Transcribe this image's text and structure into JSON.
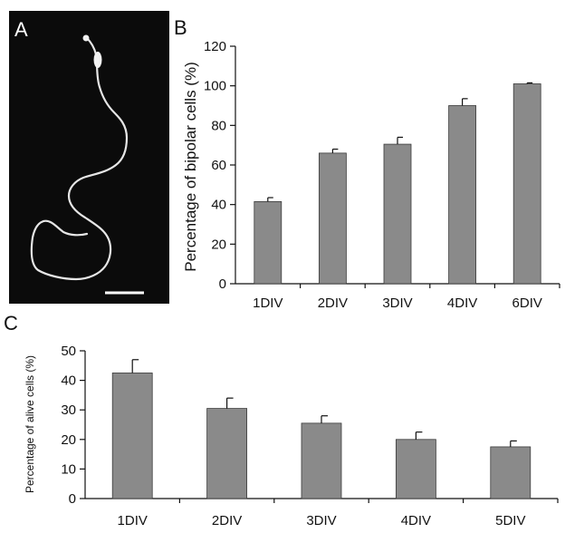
{
  "panels": {
    "a": {
      "letter": "A"
    },
    "b": {
      "letter": "B"
    },
    "c": {
      "letter": "C"
    }
  },
  "colors": {
    "bar": "#8a8a8a",
    "micrograph_background": "#0b0b0b",
    "neuron": "#e6e6e6"
  },
  "chart_data": [
    {
      "panel": "B",
      "type": "bar",
      "categories": [
        "1DIV",
        "2DIV",
        "3DIV",
        "4DIV",
        "6DIV"
      ],
      "values": [
        41.5,
        66,
        70.5,
        90,
        101
      ],
      "errors": [
        2,
        2,
        3.5,
        3.5,
        0.5
      ],
      "ylabel": "Percentage of bipolar cells (%)",
      "ylim": [
        0,
        120
      ],
      "yticks": [
        0,
        20,
        40,
        60,
        80,
        100,
        120
      ],
      "grid": false,
      "legend": "none"
    },
    {
      "panel": "C",
      "type": "bar",
      "categories": [
        "1DIV",
        "2DIV",
        "3DIV",
        "4DIV",
        "5DIV"
      ],
      "values": [
        42.5,
        30.5,
        25.5,
        20,
        17.5
      ],
      "errors": [
        4.5,
        3.5,
        2.5,
        2.5,
        2
      ],
      "ylabel": "Percentage of alive cells (%)",
      "ylim": [
        0,
        50
      ],
      "yticks": [
        0,
        10,
        20,
        30,
        40,
        50
      ],
      "grid": false,
      "legend": "none"
    }
  ]
}
